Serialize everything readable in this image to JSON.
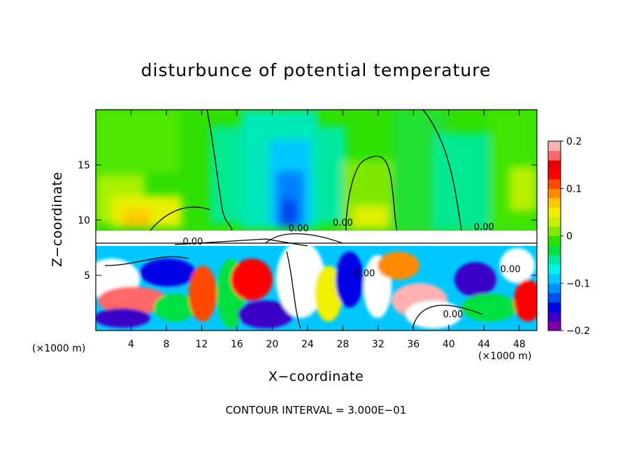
{
  "chart_data": {
    "type": "heatmap",
    "title": "disturbunce of potential temperature",
    "xlabel": "X−coordinate",
    "ylabel": "Z−coordinate",
    "x_unit_label": "(×1000 m)",
    "xlim": [
      0,
      50
    ],
    "ylim": [
      0,
      20
    ],
    "x_ticks": [
      4,
      8,
      12,
      16,
      20,
      24,
      28,
      32,
      36,
      40,
      44,
      48
    ],
    "y_ticks": [
      5,
      10,
      15
    ],
    "colorbar": {
      "range": [
        -0.2,
        0.2
      ],
      "tick_labels": [
        "0.2",
        "0.1",
        "0",
        "−0.1",
        "−0.2"
      ],
      "tick_values": [
        0.2,
        0.1,
        0,
        -0.1,
        -0.2
      ],
      "colors": [
        "#7a00a8",
        "#3b00c8",
        "#0000e6",
        "#0050f0",
        "#0090ff",
        "#00c8ff",
        "#00f0ee",
        "#00e8a0",
        "#00e040",
        "#30e000",
        "#80e800",
        "#c8f000",
        "#f0f000",
        "#ffc800",
        "#ff8c00",
        "#ff4800",
        "#ff0000",
        "#e80000",
        "#ff6868",
        "#ffb0b0"
      ]
    },
    "contour_labels": [
      "0.00",
      "0.00",
      "0.00",
      "0.00",
      "0.00",
      "0.00",
      "0.00"
    ],
    "contour_interval_text": "CONTOUR INTERVAL = 3.000E−01"
  }
}
